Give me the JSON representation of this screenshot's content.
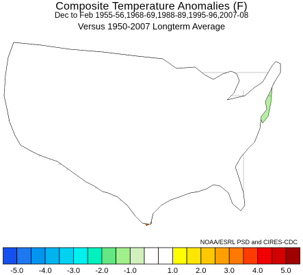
{
  "header": {
    "title": "Composite Temperature Anomalies (F)",
    "subtitle": "Dec to Feb  1955-56,1968-69,1988-89,1995-96,2007-08",
    "baseline": "Versus 1950-2007 Longterm Average"
  },
  "credit": "NOAA/ESRL PSD and CIRES-CDC",
  "legend": {
    "colors": [
      "#1450f0",
      "#1e78f0",
      "#0096f0",
      "#00b4f0",
      "#00d2f0",
      "#00f0f0",
      "#00f0be",
      "#64e682",
      "#a0f08c",
      "#d2f0be",
      "#ffffff",
      "#ffffff",
      "#ffff00",
      "#ffe600",
      "#ffc800",
      "#ffa000",
      "#ff7800",
      "#ff3c00",
      "#f00000",
      "#d20000",
      "#a00000"
    ],
    "ticks": [
      "-5.0",
      "-4.0",
      "-3.0",
      "-2.0",
      "-1.0",
      "1.0",
      "2.0",
      "3.0",
      "4.0",
      "5.0"
    ]
  },
  "map_colors": {
    "ocean": "#ffffff",
    "neutral": "#ffffff",
    "divisions": "#000000",
    "blue_core": "#1e78f0",
    "blue_mid": "#0096f0",
    "cyan": "#00d2f0",
    "aqua": "#00f0be",
    "green": "#a0f08c",
    "light_green": "#b4f0a0",
    "yellow": "#ffff00",
    "gold": "#ffc800",
    "orange": "#ffa000",
    "dark_orange": "#ff7800"
  }
}
